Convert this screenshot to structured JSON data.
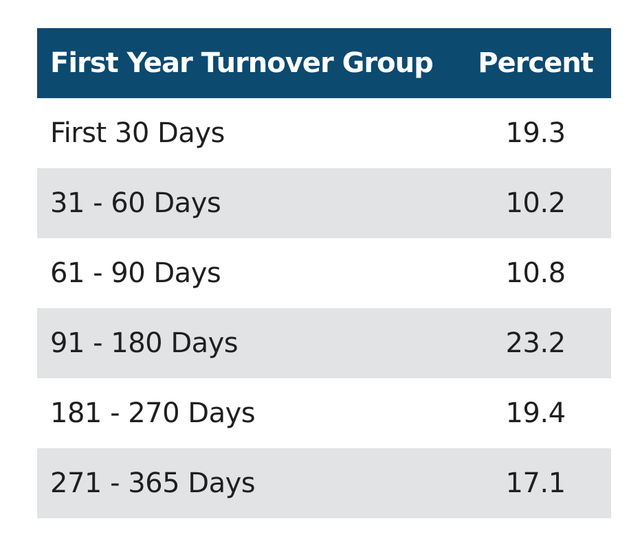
{
  "table": {
    "header": [
      "First Year Turnover Group",
      "Percent"
    ],
    "rows": [
      [
        "First 30 Days",
        19.3
      ],
      [
        "31 - 60 Days",
        10.2
      ],
      [
        "61 - 90 Days",
        10.8
      ],
      [
        "91 - 180 Days",
        23.2
      ],
      [
        "181 - 270 Days",
        19.4
      ],
      [
        "271 - 365 Days",
        17.1
      ]
    ]
  }
}
